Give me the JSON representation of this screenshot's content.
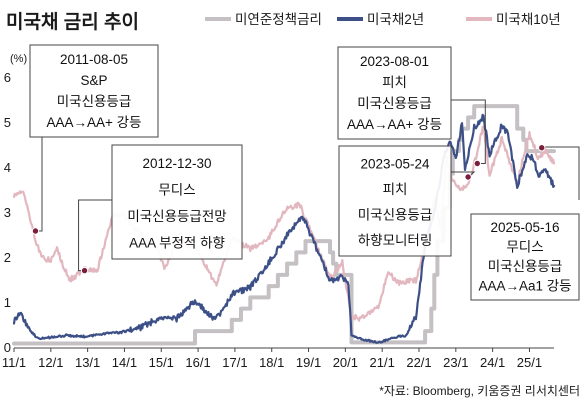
{
  "chart_data": {
    "type": "line",
    "title": "미국채 금리 추이",
    "unit": "(%)",
    "source": "*자료: Bloomberg, 키움증권 리서치센터",
    "x_ticks": [
      "11/1",
      "12/1",
      "13/1",
      "14/1",
      "15/1",
      "16/1",
      "17/1",
      "18/1",
      "19/1",
      "20/1",
      "21/1",
      "22/1",
      "23/1",
      "24/1",
      "25/1"
    ],
    "y_ticks": [
      "0",
      "1",
      "2",
      "3",
      "4",
      "5",
      "6"
    ],
    "xlim": [
      "2011-01",
      "2025-09"
    ],
    "ylim": [
      0,
      6
    ],
    "series": [
      {
        "name": "미연준정책금리",
        "color": "#c4c0c3",
        "points": [
          [
            "2011-01",
            0.1
          ],
          [
            "2015-12",
            0.1
          ],
          [
            "2015-12",
            0.375
          ],
          [
            "2016-12",
            0.375
          ],
          [
            "2016-12",
            0.625
          ],
          [
            "2017-03",
            0.625
          ],
          [
            "2017-03",
            0.875
          ],
          [
            "2017-06",
            0.875
          ],
          [
            "2017-06",
            1.125
          ],
          [
            "2017-12",
            1.125
          ],
          [
            "2017-12",
            1.375
          ],
          [
            "2018-03",
            1.375
          ],
          [
            "2018-03",
            1.625
          ],
          [
            "2018-06",
            1.625
          ],
          [
            "2018-06",
            1.875
          ],
          [
            "2018-09",
            1.875
          ],
          [
            "2018-09",
            2.125
          ],
          [
            "2018-12",
            2.125
          ],
          [
            "2018-12",
            2.375
          ],
          [
            "2019-08",
            2.375
          ],
          [
            "2019-08",
            2.125
          ],
          [
            "2019-09",
            2.125
          ],
          [
            "2019-09",
            1.875
          ],
          [
            "2019-10",
            1.875
          ],
          [
            "2019-10",
            1.625
          ],
          [
            "2020-03",
            1.625
          ],
          [
            "2020-03",
            0.125
          ],
          [
            "2022-03",
            0.125
          ],
          [
            "2022-03",
            0.375
          ],
          [
            "2022-05",
            0.375
          ],
          [
            "2022-05",
            0.875
          ],
          [
            "2022-06",
            0.875
          ],
          [
            "2022-06",
            1.625
          ],
          [
            "2022-07",
            1.625
          ],
          [
            "2022-07",
            2.375
          ],
          [
            "2022-09",
            2.375
          ],
          [
            "2022-09",
            3.125
          ],
          [
            "2022-11",
            3.125
          ],
          [
            "2022-11",
            3.875
          ],
          [
            "2022-12",
            3.875
          ],
          [
            "2022-12",
            4.375
          ],
          [
            "2023-02",
            4.375
          ],
          [
            "2023-02",
            4.625
          ],
          [
            "2023-03",
            4.625
          ],
          [
            "2023-03",
            4.875
          ],
          [
            "2023-05",
            4.875
          ],
          [
            "2023-05",
            5.125
          ],
          [
            "2023-07",
            5.125
          ],
          [
            "2023-07",
            5.375
          ],
          [
            "2024-09",
            5.375
          ],
          [
            "2024-09",
            4.875
          ],
          [
            "2024-11",
            4.875
          ],
          [
            "2024-11",
            4.625
          ],
          [
            "2024-12",
            4.625
          ],
          [
            "2024-12",
            4.375
          ],
          [
            "2025-09",
            4.375
          ]
        ]
      },
      {
        "name": "미국채2년",
        "color": "#3c5087",
        "points": [
          [
            "2011-01",
            0.6
          ],
          [
            "2011-03",
            0.8
          ],
          [
            "2011-06",
            0.4
          ],
          [
            "2011-09",
            0.2
          ],
          [
            "2012-06",
            0.28
          ],
          [
            "2013-01",
            0.25
          ],
          [
            "2013-06",
            0.32
          ],
          [
            "2013-12",
            0.35
          ],
          [
            "2014-06",
            0.45
          ],
          [
            "2014-12",
            0.65
          ],
          [
            "2015-06",
            0.65
          ],
          [
            "2015-12",
            1.05
          ],
          [
            "2016-06",
            0.65
          ],
          [
            "2016-09",
            0.8
          ],
          [
            "2016-12",
            1.2
          ],
          [
            "2017-06",
            1.35
          ],
          [
            "2017-12",
            1.9
          ],
          [
            "2018-06",
            2.5
          ],
          [
            "2018-11",
            2.95
          ],
          [
            "2019-03",
            2.3
          ],
          [
            "2019-08",
            1.5
          ],
          [
            "2019-12",
            1.6
          ],
          [
            "2020-02",
            1.4
          ],
          [
            "2020-03",
            0.3
          ],
          [
            "2020-06",
            0.2
          ],
          [
            "2020-12",
            0.12
          ],
          [
            "2021-06",
            0.25
          ],
          [
            "2021-09",
            0.28
          ],
          [
            "2021-12",
            0.7
          ],
          [
            "2022-03",
            2.3
          ],
          [
            "2022-06",
            3.0
          ],
          [
            "2022-09",
            4.2
          ],
          [
            "2022-11",
            4.6
          ],
          [
            "2023-01",
            4.2
          ],
          [
            "2023-03",
            5.0
          ],
          [
            "2023-04",
            4.0
          ],
          [
            "2023-07",
            4.9
          ],
          [
            "2023-10",
            5.15
          ],
          [
            "2023-12",
            4.3
          ],
          [
            "2024-04",
            4.95
          ],
          [
            "2024-06",
            4.75
          ],
          [
            "2024-09",
            3.6
          ],
          [
            "2024-12",
            4.25
          ],
          [
            "2025-02",
            4.25
          ],
          [
            "2025-04",
            3.8
          ],
          [
            "2025-06",
            3.95
          ],
          [
            "2025-09",
            3.6
          ]
        ]
      },
      {
        "name": "미국채10년",
        "color": "#e2b7bf",
        "points": [
          [
            "2011-01",
            3.4
          ],
          [
            "2011-04",
            3.5
          ],
          [
            "2011-08",
            2.4
          ],
          [
            "2011-10",
            2.0
          ],
          [
            "2012-01",
            1.95
          ],
          [
            "2012-03",
            2.2
          ],
          [
            "2012-07",
            1.5
          ],
          [
            "2012-12",
            1.75
          ],
          [
            "2013-04",
            1.7
          ],
          [
            "2013-09",
            2.9
          ],
          [
            "2013-12",
            3.0
          ],
          [
            "2014-06",
            2.55
          ],
          [
            "2014-12",
            2.2
          ],
          [
            "2015-02",
            1.75
          ],
          [
            "2015-06",
            2.35
          ],
          [
            "2015-12",
            2.25
          ],
          [
            "2016-07",
            1.4
          ],
          [
            "2016-12",
            2.45
          ],
          [
            "2017-06",
            2.2
          ],
          [
            "2017-12",
            2.45
          ],
          [
            "2018-05",
            3.05
          ],
          [
            "2018-10",
            3.2
          ],
          [
            "2019-01",
            2.7
          ],
          [
            "2019-08",
            1.55
          ],
          [
            "2019-12",
            1.9
          ],
          [
            "2020-03",
            0.7
          ],
          [
            "2020-06",
            0.65
          ],
          [
            "2020-12",
            0.95
          ],
          [
            "2021-03",
            1.7
          ],
          [
            "2021-06",
            1.45
          ],
          [
            "2021-12",
            1.5
          ],
          [
            "2022-03",
            2.3
          ],
          [
            "2022-06",
            3.3
          ],
          [
            "2022-08",
            2.7
          ],
          [
            "2022-10",
            4.2
          ],
          [
            "2022-12",
            3.7
          ],
          [
            "2023-03",
            3.5
          ],
          [
            "2023-06",
            3.8
          ],
          [
            "2023-10",
            4.95
          ],
          [
            "2023-12",
            3.85
          ],
          [
            "2024-04",
            4.65
          ],
          [
            "2024-09",
            3.65
          ],
          [
            "2024-12",
            4.55
          ],
          [
            "2025-01",
            4.75
          ],
          [
            "2025-04",
            4.2
          ],
          [
            "2025-06",
            4.4
          ],
          [
            "2025-09",
            4.1
          ]
        ]
      }
    ],
    "annotations": [
      {
        "lines": [
          "2011-08-05",
          "S&P",
          "미국신용등급",
          "AAA→AA+ 강등"
        ],
        "point": [
          "2011-08",
          2.6
        ]
      },
      {
        "lines": [
          "2012-12-30",
          "무디스",
          "미국신용등급전망",
          "AAA 부정적 하향"
        ],
        "point": [
          "2012-12",
          1.72
        ]
      },
      {
        "lines": [
          "2023-08-01",
          "피치",
          "미국신용등급",
          "AAA→AA+ 강등"
        ],
        "point": [
          "2023-08",
          4.1
        ]
      },
      {
        "lines": [
          "2023-05-24",
          "피치",
          "미국신용등급",
          "하향모니터링"
        ],
        "point": [
          "2023-05",
          3.8
        ]
      },
      {
        "lines": [
          "2025-05-16",
          "무디스",
          "미국신용등급",
          "AAA→Aa1 강등"
        ],
        "point": [
          "2025-05",
          4.45
        ]
      }
    ]
  }
}
